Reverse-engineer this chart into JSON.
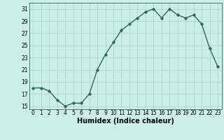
{
  "x": [
    0,
    1,
    2,
    3,
    4,
    5,
    6,
    7,
    8,
    9,
    10,
    11,
    12,
    13,
    14,
    15,
    16,
    17,
    18,
    19,
    20,
    21,
    22,
    23
  ],
  "y": [
    18,
    18,
    17.5,
    16,
    15,
    15.5,
    15.5,
    17,
    21,
    23.5,
    25.5,
    27.5,
    28.5,
    29.5,
    30.5,
    31,
    29.5,
    31,
    30,
    29.5,
    30,
    28.5,
    24.5,
    21.5
  ],
  "xlabel": "Humidex (Indice chaleur)",
  "xlim": [
    -0.5,
    23.5
  ],
  "ylim": [
    14.5,
    32
  ],
  "yticks": [
    15,
    17,
    19,
    21,
    23,
    25,
    27,
    29,
    31
  ],
  "xticks": [
    0,
    1,
    2,
    3,
    4,
    5,
    6,
    7,
    8,
    9,
    10,
    11,
    12,
    13,
    14,
    15,
    16,
    17,
    18,
    19,
    20,
    21,
    22,
    23
  ],
  "line_color": "#2a6b5e",
  "marker": "D",
  "markersize": 1.8,
  "bg_color": "#cceee8",
  "grid_color": "#b0d8d0",
  "linewidth": 1.0,
  "tick_fontsize": 5.5,
  "xlabel_fontsize": 7.0
}
